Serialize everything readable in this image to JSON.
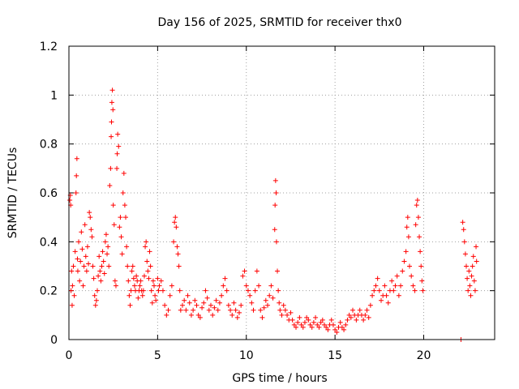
{
  "chart_data": {
    "type": "scatter",
    "title": "Day 156 of 2025, SRMTID for receiver thx0",
    "xlabel": "GPS time / hours",
    "ylabel": "SRMTID / TECUs",
    "xlim": [
      0,
      24
    ],
    "ylim": [
      0,
      1.2
    ],
    "grid": true,
    "xticks": [
      0,
      5,
      10,
      15,
      20
    ],
    "xtick_labels": [
      "0",
      "5",
      "10",
      "15",
      "20"
    ],
    "yticks": [
      0,
      0.2,
      0.4,
      0.6,
      0.8,
      1.0,
      1.2
    ],
    "ytick_labels": [
      "0",
      "0.2",
      "0.4",
      "0.6",
      "0.8",
      "1",
      "1.2"
    ],
    "marker": "plus",
    "series": [
      {
        "name": "SRMTID",
        "color": "#ff0000",
        "points": [
          [
            0.05,
            0.57
          ],
          [
            0.08,
            0.59
          ],
          [
            0.1,
            0.55
          ],
          [
            0.12,
            0.2
          ],
          [
            0.15,
            0.28
          ],
          [
            0.18,
            0.14
          ],
          [
            0.2,
            0.22
          ],
          [
            0.25,
            0.3
          ],
          [
            0.3,
            0.18
          ],
          [
            0.35,
            0.36
          ],
          [
            0.4,
            0.6
          ],
          [
            0.42,
            0.67
          ],
          [
            0.45,
            0.74
          ],
          [
            0.48,
            0.33
          ],
          [
            0.5,
            0.28
          ],
          [
            0.55,
            0.4
          ],
          [
            0.6,
            0.24
          ],
          [
            0.65,
            0.32
          ],
          [
            0.7,
            0.44
          ],
          [
            0.75,
            0.37
          ],
          [
            0.8,
            0.22
          ],
          [
            0.85,
            0.3
          ],
          [
            0.9,
            0.47
          ],
          [
            0.95,
            0.34
          ],
          [
            1.0,
            0.28
          ],
          [
            1.05,
            0.38
          ],
          [
            1.1,
            0.31
          ],
          [
            1.15,
            0.52
          ],
          [
            1.2,
            0.5
          ],
          [
            1.25,
            0.45
          ],
          [
            1.3,
            0.42
          ],
          [
            1.35,
            0.3
          ],
          [
            1.4,
            0.25
          ],
          [
            1.45,
            0.18
          ],
          [
            1.5,
            0.14
          ],
          [
            1.55,
            0.16
          ],
          [
            1.6,
            0.2
          ],
          [
            1.65,
            0.26
          ],
          [
            1.7,
            0.34
          ],
          [
            1.75,
            0.28
          ],
          [
            1.8,
            0.24
          ],
          [
            1.85,
            0.3
          ],
          [
            1.9,
            0.36
          ],
          [
            1.95,
            0.32
          ],
          [
            2.0,
            0.27
          ],
          [
            2.05,
            0.4
          ],
          [
            2.1,
            0.43
          ],
          [
            2.15,
            0.35
          ],
          [
            2.2,
            0.38
          ],
          [
            2.25,
            0.3
          ],
          [
            2.3,
            0.63
          ],
          [
            2.35,
            0.7
          ],
          [
            2.38,
            0.83
          ],
          [
            2.4,
            0.89
          ],
          [
            2.42,
            0.97
          ],
          [
            2.45,
            1.02
          ],
          [
            2.48,
            0.94
          ],
          [
            2.5,
            0.55
          ],
          [
            2.55,
            0.47
          ],
          [
            2.6,
            0.24
          ],
          [
            2.65,
            0.22
          ],
          [
            2.7,
            0.7
          ],
          [
            2.72,
            0.76
          ],
          [
            2.75,
            0.84
          ],
          [
            2.8,
            0.79
          ],
          [
            2.85,
            0.46
          ],
          [
            2.9,
            0.5
          ],
          [
            2.95,
            0.42
          ],
          [
            3.0,
            0.35
          ],
          [
            3.05,
            0.6
          ],
          [
            3.1,
            0.68
          ],
          [
            3.15,
            0.55
          ],
          [
            3.2,
            0.5
          ],
          [
            3.25,
            0.38
          ],
          [
            3.3,
            0.3
          ],
          [
            3.35,
            0.24
          ],
          [
            3.4,
            0.18
          ],
          [
            3.45,
            0.14
          ],
          [
            3.5,
            0.2
          ],
          [
            3.55,
            0.28
          ],
          [
            3.6,
            0.3
          ],
          [
            3.65,
            0.25
          ],
          [
            3.7,
            0.22
          ],
          [
            3.75,
            0.2
          ],
          [
            3.8,
            0.26
          ],
          [
            3.85,
            0.24
          ],
          [
            3.9,
            0.17
          ],
          [
            3.95,
            0.2
          ],
          [
            4.0,
            0.22
          ],
          [
            4.05,
            0.24
          ],
          [
            4.1,
            0.2
          ],
          [
            4.15,
            0.18
          ],
          [
            4.2,
            0.2
          ],
          [
            4.25,
            0.26
          ],
          [
            4.3,
            0.38
          ],
          [
            4.35,
            0.4
          ],
          [
            4.4,
            0.32
          ],
          [
            4.45,
            0.28
          ],
          [
            4.5,
            0.25
          ],
          [
            4.55,
            0.36
          ],
          [
            4.6,
            0.3
          ],
          [
            4.65,
            0.2
          ],
          [
            4.7,
            0.15
          ],
          [
            4.75,
            0.24
          ],
          [
            4.8,
            0.22
          ],
          [
            4.85,
            0.18
          ],
          [
            4.9,
            0.16
          ],
          [
            5.0,
            0.25
          ],
          [
            5.05,
            0.2
          ],
          [
            5.1,
            0.22
          ],
          [
            5.2,
            0.24
          ],
          [
            5.3,
            0.2
          ],
          [
            5.4,
            0.14
          ],
          [
            5.5,
            0.1
          ],
          [
            5.6,
            0.12
          ],
          [
            5.7,
            0.18
          ],
          [
            5.8,
            0.22
          ],
          [
            5.9,
            0.4
          ],
          [
            5.95,
            0.48
          ],
          [
            6.0,
            0.5
          ],
          [
            6.05,
            0.46
          ],
          [
            6.1,
            0.38
          ],
          [
            6.15,
            0.35
          ],
          [
            6.2,
            0.3
          ],
          [
            6.25,
            0.2
          ],
          [
            6.3,
            0.12
          ],
          [
            6.4,
            0.14
          ],
          [
            6.5,
            0.16
          ],
          [
            6.6,
            0.12
          ],
          [
            6.7,
            0.18
          ],
          [
            6.8,
            0.15
          ],
          [
            6.9,
            0.1
          ],
          [
            7.0,
            0.12
          ],
          [
            7.1,
            0.16
          ],
          [
            7.2,
            0.14
          ],
          [
            7.3,
            0.1
          ],
          [
            7.4,
            0.09
          ],
          [
            7.5,
            0.13
          ],
          [
            7.6,
            0.15
          ],
          [
            7.7,
            0.2
          ],
          [
            7.8,
            0.17
          ],
          [
            7.9,
            0.12
          ],
          [
            8.0,
            0.14
          ],
          [
            8.1,
            0.1
          ],
          [
            8.2,
            0.13
          ],
          [
            8.3,
            0.16
          ],
          [
            8.4,
            0.12
          ],
          [
            8.5,
            0.15
          ],
          [
            8.6,
            0.18
          ],
          [
            8.7,
            0.22
          ],
          [
            8.8,
            0.25
          ],
          [
            8.9,
            0.2
          ],
          [
            9.0,
            0.14
          ],
          [
            9.1,
            0.12
          ],
          [
            9.2,
            0.1
          ],
          [
            9.3,
            0.15
          ],
          [
            9.4,
            0.12
          ],
          [
            9.5,
            0.09
          ],
          [
            9.6,
            0.11
          ],
          [
            9.7,
            0.14
          ],
          [
            9.8,
            0.26
          ],
          [
            9.9,
            0.28
          ],
          [
            10.0,
            0.22
          ],
          [
            10.1,
            0.2
          ],
          [
            10.2,
            0.18
          ],
          [
            10.3,
            0.15
          ],
          [
            10.4,
            0.12
          ],
          [
            10.5,
            0.2
          ],
          [
            10.6,
            0.28
          ],
          [
            10.7,
            0.22
          ],
          [
            10.8,
            0.12
          ],
          [
            10.9,
            0.09
          ],
          [
            11.0,
            0.13
          ],
          [
            11.1,
            0.16
          ],
          [
            11.2,
            0.14
          ],
          [
            11.3,
            0.18
          ],
          [
            11.4,
            0.22
          ],
          [
            11.5,
            0.17
          ],
          [
            11.6,
            0.45
          ],
          [
            11.62,
            0.55
          ],
          [
            11.65,
            0.65
          ],
          [
            11.68,
            0.6
          ],
          [
            11.7,
            0.4
          ],
          [
            11.75,
            0.28
          ],
          [
            11.8,
            0.2
          ],
          [
            11.85,
            0.15
          ],
          [
            11.9,
            0.12
          ],
          [
            12.0,
            0.1
          ],
          [
            12.1,
            0.14
          ],
          [
            12.2,
            0.12
          ],
          [
            12.3,
            0.1
          ],
          [
            12.4,
            0.08
          ],
          [
            12.5,
            0.11
          ],
          [
            12.6,
            0.08
          ],
          [
            12.7,
            0.06
          ],
          [
            12.8,
            0.05
          ],
          [
            12.9,
            0.07
          ],
          [
            13.0,
            0.09
          ],
          [
            13.1,
            0.06
          ],
          [
            13.2,
            0.05
          ],
          [
            13.3,
            0.07
          ],
          [
            13.4,
            0.09
          ],
          [
            13.5,
            0.08
          ],
          [
            13.6,
            0.06
          ],
          [
            13.7,
            0.05
          ],
          [
            13.8,
            0.07
          ],
          [
            13.9,
            0.09
          ],
          [
            14.0,
            0.06
          ],
          [
            14.1,
            0.05
          ],
          [
            14.2,
            0.07
          ],
          [
            14.3,
            0.08
          ],
          [
            14.4,
            0.06
          ],
          [
            14.5,
            0.05
          ],
          [
            14.6,
            0.04
          ],
          [
            14.7,
            0.06
          ],
          [
            14.8,
            0.08
          ],
          [
            14.9,
            0.06
          ],
          [
            15.0,
            0.04
          ],
          [
            15.1,
            0.03
          ],
          [
            15.2,
            0.05
          ],
          [
            15.3,
            0.07
          ],
          [
            15.4,
            0.05
          ],
          [
            15.5,
            0.04
          ],
          [
            15.6,
            0.06
          ],
          [
            15.7,
            0.08
          ],
          [
            15.8,
            0.1
          ],
          [
            15.9,
            0.09
          ],
          [
            16.0,
            0.12
          ],
          [
            16.1,
            0.1
          ],
          [
            16.2,
            0.08
          ],
          [
            16.3,
            0.1
          ],
          [
            16.4,
            0.12
          ],
          [
            16.5,
            0.1
          ],
          [
            16.6,
            0.08
          ],
          [
            16.7,
            0.1
          ],
          [
            16.8,
            0.12
          ],
          [
            16.9,
            0.09
          ],
          [
            17.0,
            0.14
          ],
          [
            17.1,
            0.18
          ],
          [
            17.2,
            0.2
          ],
          [
            17.3,
            0.22
          ],
          [
            17.4,
            0.25
          ],
          [
            17.5,
            0.2
          ],
          [
            17.6,
            0.16
          ],
          [
            17.7,
            0.18
          ],
          [
            17.8,
            0.22
          ],
          [
            17.9,
            0.18
          ],
          [
            18.0,
            0.15
          ],
          [
            18.1,
            0.2
          ],
          [
            18.2,
            0.24
          ],
          [
            18.3,
            0.2
          ],
          [
            18.4,
            0.22
          ],
          [
            18.5,
            0.26
          ],
          [
            18.6,
            0.18
          ],
          [
            18.7,
            0.22
          ],
          [
            18.8,
            0.28
          ],
          [
            18.9,
            0.32
          ],
          [
            19.0,
            0.36
          ],
          [
            19.05,
            0.46
          ],
          [
            19.1,
            0.5
          ],
          [
            19.15,
            0.42
          ],
          [
            19.2,
            0.3
          ],
          [
            19.3,
            0.26
          ],
          [
            19.4,
            0.22
          ],
          [
            19.5,
            0.2
          ],
          [
            19.55,
            0.47
          ],
          [
            19.6,
            0.55
          ],
          [
            19.65,
            0.57
          ],
          [
            19.7,
            0.5
          ],
          [
            19.75,
            0.42
          ],
          [
            19.8,
            0.36
          ],
          [
            19.85,
            0.3
          ],
          [
            19.9,
            0.24
          ],
          [
            19.95,
            0.2
          ],
          [
            22.1,
            0.0
          ],
          [
            22.2,
            0.48
          ],
          [
            22.25,
            0.45
          ],
          [
            22.3,
            0.4
          ],
          [
            22.35,
            0.35
          ],
          [
            22.4,
            0.3
          ],
          [
            22.45,
            0.25
          ],
          [
            22.5,
            0.2
          ],
          [
            22.55,
            0.28
          ],
          [
            22.6,
            0.22
          ],
          [
            22.65,
            0.18
          ],
          [
            22.7,
            0.26
          ],
          [
            22.75,
            0.3
          ],
          [
            22.8,
            0.34
          ],
          [
            22.85,
            0.24
          ],
          [
            22.9,
            0.2
          ],
          [
            22.95,
            0.38
          ],
          [
            22.98,
            0.32
          ]
        ]
      }
    ]
  }
}
